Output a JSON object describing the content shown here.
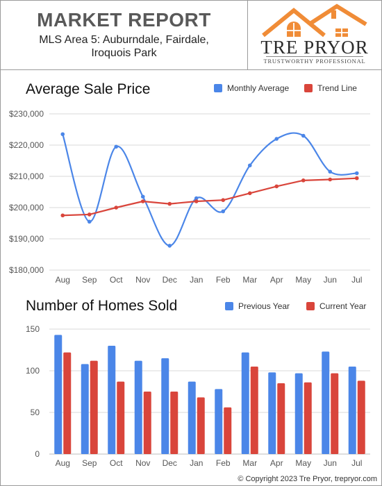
{
  "header": {
    "title": "MARKET REPORT",
    "area_line1": "MLS Area 5:  Auburndale, Fairdale,",
    "area_line2": "Iroquois Park"
  },
  "logo": {
    "name": "TRE PRYOR",
    "tagline": "TRUSTWORTHY PROFESSIONAL",
    "color": "#f08c37"
  },
  "footer": {
    "copyright": "© Copyright 2023 Tre Pryor, trepryor.com"
  },
  "chart_data": [
    {
      "type": "line",
      "title": "Average Sale Price",
      "categories": [
        "Aug",
        "Sep",
        "Oct",
        "Nov",
        "Dec",
        "Jan",
        "Feb",
        "Mar",
        "Apr",
        "May",
        "Jun",
        "Jul"
      ],
      "yticks": [
        "$180,000",
        "$190,000",
        "$200,000",
        "$210,000",
        "$220,000",
        "$230,000"
      ],
      "ylim": [
        180000,
        230000
      ],
      "grid": true,
      "legend_position": "top-right",
      "series": [
        {
          "name": "Monthly Average",
          "color": "#4b86e8",
          "smooth": true,
          "values": [
            223500,
            195500,
            219500,
            203500,
            187800,
            203000,
            198800,
            213500,
            222000,
            223000,
            211500,
            211000
          ]
        },
        {
          "name": "Trend Line",
          "color": "#d9453b",
          "smooth": false,
          "values": [
            197500,
            197800,
            200000,
            202000,
            201200,
            202000,
            202400,
            204600,
            206800,
            208700,
            209000,
            209400
          ]
        }
      ]
    },
    {
      "type": "bar",
      "title": "Number of Homes Sold",
      "categories": [
        "Aug",
        "Sep",
        "Oct",
        "Nov",
        "Dec",
        "Jan",
        "Feb",
        "Mar",
        "Apr",
        "May",
        "Jun",
        "Jul"
      ],
      "yticks": [
        "0",
        "50",
        "100",
        "150"
      ],
      "ylim": [
        0,
        150
      ],
      "grid": true,
      "legend_position": "top-right",
      "series": [
        {
          "name": "Previous Year",
          "color": "#4b86e8",
          "values": [
            143,
            108,
            130,
            112,
            115,
            87,
            78,
            122,
            98,
            97,
            123,
            105
          ]
        },
        {
          "name": "Current Year",
          "color": "#d9453b",
          "values": [
            122,
            112,
            87,
            75,
            75,
            68,
            56,
            105,
            85,
            86,
            97,
            88
          ]
        }
      ]
    }
  ]
}
